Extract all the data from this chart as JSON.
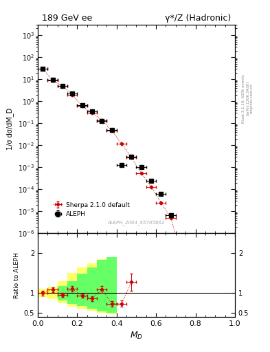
{
  "title_left": "189 GeV ee",
  "title_right": "γ*/Z (Hadronic)",
  "xlabel": "$M_D$",
  "ylabel_main": "1/σ dσ/dM_D",
  "ylabel_ratio": "Ratio to ALEPH",
  "right_label_1": "Rivet 3.1.10, 500k events",
  "right_label_2": "[arXiv:1306.3436]",
  "right_label_3": "mcplots.cern.ch",
  "ref_label": "ALEPH_2004_S5765862",
  "aleph_x": [
    0.025,
    0.075,
    0.125,
    0.175,
    0.225,
    0.275,
    0.325,
    0.375,
    0.425,
    0.475,
    0.525,
    0.575,
    0.625,
    0.675
  ],
  "aleph_y": [
    30.0,
    9.5,
    5.0,
    2.2,
    0.65,
    0.35,
    0.13,
    0.05,
    0.0013,
    0.003,
    0.001,
    0.00025,
    6e-05,
    6.5e-06
  ],
  "aleph_xerr": [
    0.025,
    0.025,
    0.025,
    0.025,
    0.025,
    0.025,
    0.025,
    0.025,
    0.025,
    0.025,
    0.025,
    0.025,
    0.025,
    0.025
  ],
  "aleph_yerr": [
    2.0,
    0.5,
    0.25,
    0.12,
    0.04,
    0.018,
    0.007,
    0.003,
    0.0001,
    0.0002,
    5e-05,
    2e-05,
    4e-06,
    5e-07
  ],
  "sherpa_x": [
    0.025,
    0.075,
    0.125,
    0.175,
    0.225,
    0.275,
    0.325,
    0.375,
    0.425,
    0.475,
    0.525,
    0.575,
    0.625,
    0.675,
    0.75
  ],
  "sherpa_y": [
    30.0,
    9.0,
    4.8,
    2.0,
    0.6,
    0.3,
    0.14,
    0.046,
    0.012,
    0.0028,
    0.00055,
    0.00013,
    2.5e-05,
    5e-06,
    2e-08
  ],
  "sherpa_xerr": [
    0.025,
    0.025,
    0.025,
    0.025,
    0.025,
    0.025,
    0.025,
    0.025,
    0.025,
    0.025,
    0.025,
    0.025,
    0.025,
    0.025,
    0.05
  ],
  "sherpa_yerr": [
    0.8,
    0.2,
    0.1,
    0.05,
    0.015,
    0.008,
    0.003,
    0.001,
    0.0003,
    7e-05,
    1.5e-05,
    4e-06,
    8e-07,
    1.5e-07,
    3e-09
  ],
  "ratio_x": [
    0.025,
    0.075,
    0.125,
    0.175,
    0.225,
    0.275,
    0.325,
    0.375,
    0.425,
    0.475,
    0.55
  ],
  "ratio_y": [
    1.0,
    1.08,
    0.95,
    1.1,
    0.93,
    0.86,
    1.09,
    0.73,
    0.73,
    1.27,
    0.0
  ],
  "ratio_yerr": [
    0.06,
    0.06,
    0.05,
    0.07,
    0.05,
    0.06,
    0.09,
    0.07,
    0.08,
    0.22,
    0.0
  ],
  "ratio_xerr": [
    0.025,
    0.025,
    0.025,
    0.025,
    0.025,
    0.025,
    0.025,
    0.025,
    0.025,
    0.025,
    0.025
  ],
  "yellow_steps_x": [
    0.0,
    0.05,
    0.1,
    0.15,
    0.2,
    0.25,
    0.3,
    0.35,
    0.4
  ],
  "yellow_steps_low": [
    0.9,
    0.85,
    0.75,
    0.65,
    0.6,
    0.55,
    0.5,
    0.47,
    0.47
  ],
  "yellow_steps_high": [
    1.1,
    1.15,
    1.3,
    1.5,
    1.65,
    1.75,
    1.85,
    1.9,
    1.9
  ],
  "green_steps_x": [
    0.1,
    0.15,
    0.2,
    0.25,
    0.3,
    0.35,
    0.4
  ],
  "green_steps_low": [
    0.82,
    0.73,
    0.67,
    0.6,
    0.53,
    0.5,
    0.5
  ],
  "green_steps_high": [
    1.18,
    1.3,
    1.48,
    1.64,
    1.83,
    1.9,
    1.9
  ],
  "xlim": [
    0.0,
    1.0
  ],
  "ylim_main": [
    1e-06,
    3000.0
  ],
  "ylim_ratio": [
    0.4,
    2.5
  ],
  "yticks_ratio": [
    0.5,
    1.0,
    2.0
  ],
  "ytick_labels_ratio": [
    "0.5",
    "1",
    "2"
  ],
  "background_color": "#ffffff",
  "aleph_color": "#000000",
  "sherpa_color": "#cc0000",
  "ratio_color": "#cc0000",
  "yellow_color": "#ffff66",
  "green_color": "#66ff66"
}
